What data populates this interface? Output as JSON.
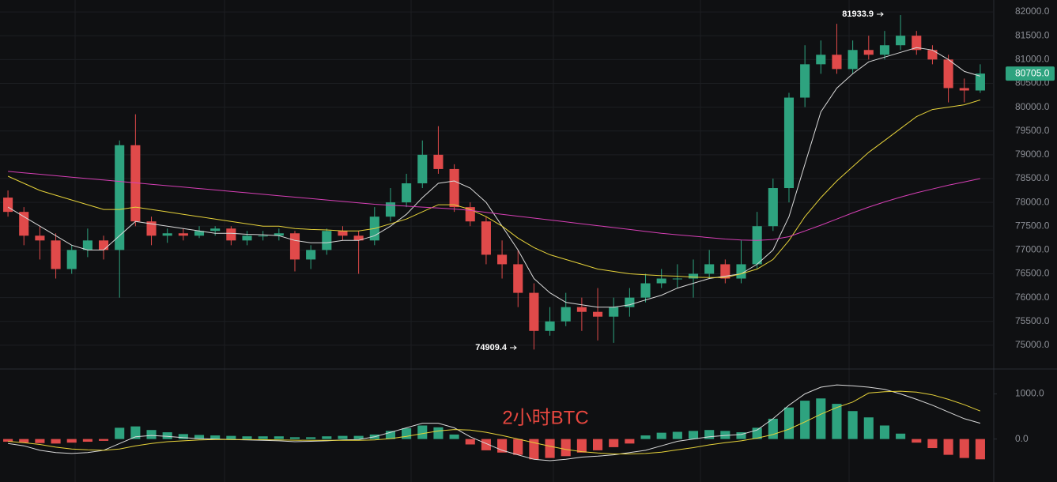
{
  "chart_data": [
    {
      "type": "candlestick",
      "open": [
        78100,
        77800,
        77300,
        77200,
        76600,
        77000,
        77200,
        77000,
        79200,
        77600,
        77300,
        77350,
        77300,
        77400,
        77450,
        77200,
        77300,
        77300,
        77350,
        76800,
        77000,
        77400,
        77300,
        77200,
        77700,
        78000,
        78400,
        79000,
        78700,
        77900,
        77600,
        76900,
        76700,
        76100,
        75300,
        75500,
        75800,
        75700,
        75600,
        75800,
        76000,
        76300,
        76400,
        76400,
        76500,
        76700,
        76400,
        76700,
        77500,
        78300,
        80200,
        80900,
        81100,
        80800,
        81200,
        81100,
        81300,
        81500,
        81200,
        81000,
        80400,
        80350
      ],
      "high": [
        78250,
        77900,
        77500,
        77350,
        77100,
        77450,
        77300,
        79300,
        79850,
        77700,
        77450,
        77450,
        77500,
        77500,
        77500,
        77400,
        77400,
        77450,
        77400,
        77100,
        77450,
        77500,
        77400,
        77900,
        78300,
        78600,
        79300,
        79600,
        78800,
        78000,
        77700,
        77200,
        77000,
        76300,
        75800,
        76100,
        76000,
        76200,
        76000,
        76200,
        76500,
        76600,
        76700,
        76800,
        77000,
        76800,
        77200,
        77800,
        78500,
        80300,
        81300,
        81400,
        81750,
        81400,
        81500,
        81600,
        81933.9,
        81600,
        81300,
        81100,
        80600,
        80900
      ],
      "low": [
        77700,
        77100,
        76800,
        76400,
        76500,
        76850,
        76800,
        76000,
        77500,
        77100,
        77150,
        77200,
        77250,
        77300,
        77100,
        77100,
        77200,
        77200,
        76550,
        76600,
        76900,
        77200,
        76500,
        77100,
        77600,
        77900,
        78300,
        78600,
        77800,
        77500,
        76700,
        76400,
        75800,
        74909.4,
        75200,
        75400,
        75300,
        75100,
        75050,
        75600,
        75900,
        76200,
        76200,
        76000,
        76400,
        76300,
        76300,
        76600,
        77400,
        78000,
        80000,
        80700,
        80700,
        80700,
        81000,
        81000,
        81200,
        81100,
        80900,
        80100,
        80100,
        80300
      ],
      "close": [
        77800,
        77300,
        77200,
        76600,
        77000,
        77200,
        77000,
        79200,
        77600,
        77300,
        77350,
        77300,
        77400,
        77450,
        77200,
        77300,
        77300,
        77350,
        76800,
        77000,
        77400,
        77300,
        77200,
        77700,
        78000,
        78400,
        79000,
        78700,
        77900,
        77600,
        76900,
        76700,
        76100,
        75300,
        75500,
        75800,
        75700,
        75600,
        75800,
        76000,
        76300,
        76400,
        76400,
        76500,
        76700,
        76400,
        76700,
        77500,
        78300,
        80200,
        80900,
        81100,
        80800,
        81200,
        81100,
        81300,
        81500,
        81200,
        81000,
        80400,
        80350,
        80705
      ],
      "up_color": "#2ea37f",
      "down_color": "#e04a4a",
      "series": [
        {
          "color": "#d9d9d9",
          "values": [
            77900,
            77700,
            77500,
            77300,
            77100,
            77000,
            77000,
            77300,
            77600,
            77550,
            77500,
            77450,
            77400,
            77350,
            77350,
            77330,
            77320,
            77300,
            77200,
            77150,
            77150,
            77200,
            77200,
            77300,
            77500,
            77750,
            78100,
            78400,
            78450,
            78300,
            78000,
            77500,
            77000,
            76400,
            76100,
            75900,
            75850,
            75800,
            75800,
            75850,
            75950,
            76050,
            76200,
            76300,
            76400,
            76450,
            76500,
            76700,
            77000,
            77700,
            78800,
            79900,
            80400,
            80700,
            80950,
            81050,
            81150,
            81250,
            81200,
            81000,
            80750,
            80650
          ]
        },
        {
          "color": "#e6d23a",
          "values": [
            78550,
            78400,
            78250,
            78150,
            78050,
            77950,
            77850,
            77850,
            77900,
            77850,
            77800,
            77750,
            77700,
            77650,
            77600,
            77550,
            77500,
            77500,
            77450,
            77430,
            77420,
            77400,
            77400,
            77450,
            77550,
            77650,
            77800,
            77950,
            77950,
            77850,
            77700,
            77500,
            77250,
            77050,
            76900,
            76800,
            76700,
            76600,
            76550,
            76500,
            76480,
            76460,
            76450,
            76430,
            76420,
            76420,
            76500,
            76600,
            76800,
            77200,
            77700,
            78100,
            78450,
            78750,
            79050,
            79300,
            79550,
            79800,
            79950,
            80000,
            80050,
            80150
          ]
        },
        {
          "color": "#d63fb5",
          "values": [
            78650,
            78620,
            78590,
            78560,
            78530,
            78500,
            78470,
            78440,
            78410,
            78380,
            78350,
            78320,
            78290,
            78260,
            78230,
            78200,
            78170,
            78140,
            78110,
            78080,
            78050,
            78020,
            77990,
            77960,
            77940,
            77920,
            77900,
            77880,
            77860,
            77830,
            77790,
            77750,
            77710,
            77670,
            77630,
            77590,
            77550,
            77510,
            77470,
            77430,
            77390,
            77350,
            77320,
            77290,
            77260,
            77230,
            77210,
            77200,
            77220,
            77280,
            77400,
            77520,
            77650,
            77780,
            77900,
            78010,
            78110,
            78200,
            78280,
            78360,
            78430,
            78500
          ]
        }
      ],
      "ylim": [
        74500,
        82250
      ],
      "yticks": [
        {
          "value": 75000,
          "label": "75000.0"
        },
        {
          "value": 75500,
          "label": "75500.0"
        },
        {
          "value": 76000,
          "label": "76000.0"
        },
        {
          "value": 76500,
          "label": "76500.0"
        },
        {
          "value": 77000,
          "label": "77000.0"
        },
        {
          "value": 77500,
          "label": "77500.0"
        },
        {
          "value": 78000,
          "label": "78000.0"
        },
        {
          "value": 78500,
          "label": "78500.0"
        },
        {
          "value": 79000,
          "label": "79000.0"
        },
        {
          "value": 79500,
          "label": "79500.0"
        },
        {
          "value": 80000,
          "label": "80000.0"
        },
        {
          "value": 80500,
          "label": "80500.0"
        },
        {
          "value": 81000,
          "label": "81000.0"
        },
        {
          "value": 81500,
          "label": "81500.0"
        },
        {
          "value": 82000,
          "label": "82000.0"
        }
      ],
      "high_annotation": 81933.9,
      "low_annotation": 74909.4,
      "last_price": {
        "value": 80705,
        "label": "80705.0"
      },
      "grid": true
    },
    {
      "type": "macd",
      "values": [
        -60,
        -80,
        -90,
        -100,
        -80,
        -60,
        -40,
        250,
        280,
        200,
        150,
        110,
        90,
        80,
        70,
        60,
        60,
        60,
        40,
        40,
        60,
        70,
        70,
        100,
        180,
        240,
        300,
        260,
        100,
        -120,
        -250,
        -300,
        -350,
        -450,
        -420,
        -380,
        -300,
        -250,
        -180,
        -100,
        80,
        140,
        160,
        180,
        200,
        180,
        150,
        250,
        450,
        700,
        850,
        900,
        780,
        620,
        480,
        300,
        120,
        -80,
        -200,
        -350,
        -420,
        -450
      ],
      "series": [
        {
          "color": "#d9d9d9",
          "values": [
            -100,
            -150,
            -250,
            -300,
            -320,
            -300,
            -250,
            -100,
            50,
            80,
            60,
            30,
            10,
            0,
            -10,
            -20,
            -30,
            -40,
            -60,
            -50,
            -40,
            -20,
            -10,
            50,
            150,
            250,
            350,
            350,
            250,
            50,
            -100,
            -250,
            -350,
            -450,
            -480,
            -450,
            -400,
            -380,
            -350,
            -300,
            -250,
            -150,
            -50,
            0,
            50,
            80,
            100,
            200,
            450,
            750,
            1000,
            1150,
            1200,
            1180,
            1150,
            1100,
            1000,
            880,
            750,
            600,
            450,
            350
          ]
        },
        {
          "color": "#e6d23a",
          "values": [
            -50,
            -80,
            -120,
            -180,
            -220,
            -240,
            -250,
            -220,
            -150,
            -100,
            -60,
            -40,
            -20,
            -10,
            -10,
            -10,
            -15,
            -20,
            -25,
            -30,
            -30,
            -30,
            -30,
            -20,
            10,
            60,
            120,
            180,
            210,
            200,
            150,
            80,
            0,
            -80,
            -160,
            -230,
            -280,
            -310,
            -330,
            -330,
            -320,
            -290,
            -240,
            -190,
            -130,
            -80,
            -40,
            20,
            100,
            220,
            380,
            550,
            700,
            820,
            1020,
            1050,
            1060,
            1040,
            980,
            880,
            760,
            620
          ]
        }
      ],
      "ylim": [
        -900,
        1500
      ],
      "yticks": [
        {
          "value": 0,
          "label": "0.0"
        },
        {
          "value": 1000,
          "label": "1000.0"
        }
      ],
      "watermark": "2小时BTC"
    }
  ]
}
